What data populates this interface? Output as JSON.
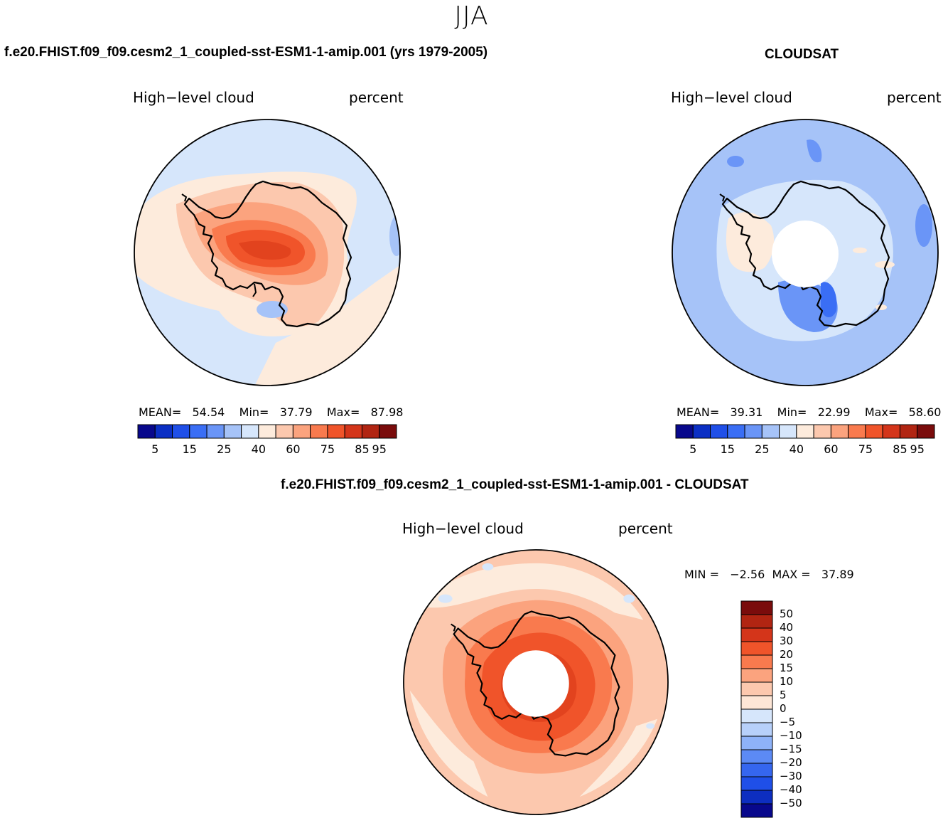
{
  "title": "JJA",
  "panels": [
    {
      "case_title": "f.e20.FHIST.f09_f09.cesm2_1_coupled-sst-ESM1-1-amip.001 (yrs 1979-2005)",
      "left_label": "High−level cloud",
      "right_label": "percent",
      "stats": {
        "mean_label": "MEAN=",
        "mean": "54.54",
        "min_label": "Min=",
        "min": "37.79",
        "max_label": "Max=",
        "max": "87.98"
      }
    },
    {
      "case_title": "CLOUDSAT",
      "left_label": "High−level cloud",
      "right_label": "percent",
      "stats": {
        "mean_label": "MEAN=",
        "mean": "39.31",
        "min_label": "Min=",
        "min": "22.99",
        "max_label": "Max=",
        "max": "58.60"
      }
    },
    {
      "case_title": "f.e20.FHIST.f09_f09.cesm2_1_coupled-sst-ESM1-1-amip.001 - CLOUDSAT",
      "left_label": "High−level cloud",
      "right_label": "percent",
      "stats": {
        "min_label": "MIN =",
        "min": "−2.56",
        "max_label": "MAX =",
        "max": "37.89"
      }
    }
  ],
  "abs_colorbar": {
    "colors": [
      "#08088c",
      "#0b2fc4",
      "#1f4fe8",
      "#3a6ef5",
      "#6a95f7",
      "#a6c3f8",
      "#d6e6fb",
      "#fdebdc",
      "#fcc8ae",
      "#fba37e",
      "#f97a4e",
      "#f0542a",
      "#d4351a",
      "#b12512",
      "#7a0c0c"
    ],
    "tick_labels": [
      "5",
      "15",
      "25",
      "40",
      "60",
      "75",
      "85",
      "95"
    ]
  },
  "diff_colorbar": {
    "colors": [
      "#7a0c0c",
      "#b12512",
      "#d4351a",
      "#f0542a",
      "#f97a4e",
      "#fba37e",
      "#fcc8ae",
      "#fde6d6",
      "#d6e6fb",
      "#b7d0fa",
      "#8eb2f8",
      "#5c8af5",
      "#3566ef",
      "#1f4fe8",
      "#0d2ec0",
      "#08088c"
    ],
    "tick_labels": [
      "50",
      "40",
      "30",
      "20",
      "15",
      "10",
      "5",
      "0",
      "−5",
      "−10",
      "−15",
      "−20",
      "−30",
      "−40",
      "−50"
    ]
  }
}
